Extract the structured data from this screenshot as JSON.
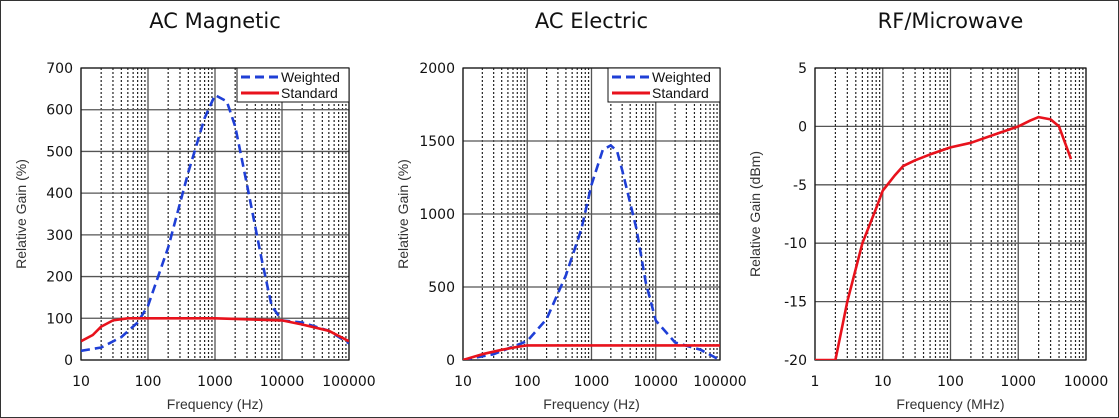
{
  "chart_data": [
    {
      "type": "line",
      "title": "AC Magnetic",
      "xlabel": "Frequency (Hz)",
      "ylabel": "Relative Gain (%)",
      "xscale": "log",
      "xlim": [
        10,
        100000
      ],
      "ylim": [
        0,
        700
      ],
      "xticks": [
        "10",
        "100",
        "1000",
        "10000",
        "100000"
      ],
      "yticks": [
        "0",
        "100",
        "200",
        "300",
        "400",
        "500",
        "600",
        "700"
      ],
      "grid": true,
      "legend_position": "top-right",
      "series": [
        {
          "name": "Weighted",
          "color": "#1f3fd6",
          "style": "dashed",
          "x": [
            10,
            20,
            40,
            70,
            100,
            200,
            400,
            700,
            1000,
            1500,
            2000,
            3000,
            5000,
            7000,
            10000,
            20000,
            50000,
            100000
          ],
          "y": [
            22,
            30,
            55,
            90,
            130,
            270,
            450,
            580,
            635,
            620,
            560,
            420,
            240,
            130,
            95,
            90,
            70,
            40
          ]
        },
        {
          "name": "Standard",
          "color": "#e8121c",
          "style": "solid",
          "x": [
            10,
            15,
            20,
            30,
            50,
            100,
            1000,
            10000,
            20000,
            50000,
            100000
          ],
          "y": [
            45,
            60,
            80,
            95,
            100,
            100,
            100,
            95,
            85,
            70,
            45
          ]
        }
      ]
    },
    {
      "type": "line",
      "title": "AC Electric",
      "xlabel": "Frequency (Hz)",
      "ylabel": "Relative Gain (%)",
      "xscale": "log",
      "xlim": [
        10,
        100000
      ],
      "ylim": [
        0,
        2000
      ],
      "xticks": [
        "10",
        "100",
        "1000",
        "10000",
        "100000"
      ],
      "yticks": [
        "0",
        "500",
        "1000",
        "1500",
        "2000"
      ],
      "grid": true,
      "legend_position": "top-right",
      "series": [
        {
          "name": "Weighted",
          "color": "#1f3fd6",
          "style": "dashed",
          "x": [
            10,
            30,
            100,
            200,
            400,
            700,
            1000,
            1500,
            2000,
            2500,
            3000,
            5000,
            7000,
            10000,
            20000,
            50000,
            100000
          ],
          "y": [
            0,
            40,
            130,
            280,
            580,
            900,
            1200,
            1440,
            1470,
            1430,
            1300,
            900,
            530,
            270,
            120,
            70,
            0
          ]
        },
        {
          "name": "Standard",
          "color": "#e8121c",
          "style": "solid",
          "x": [
            10,
            20,
            40,
            70,
            100,
            1000,
            10000,
            100000
          ],
          "y": [
            0,
            40,
            70,
            90,
            100,
            100,
            100,
            100
          ]
        }
      ]
    },
    {
      "type": "line",
      "title": "RF/Microwave",
      "xlabel": "Frequency (MHz)",
      "ylabel": "Relative Gain (dBm)",
      "xscale": "log",
      "xlim": [
        1,
        10000
      ],
      "ylim": [
        -20,
        5
      ],
      "xticks": [
        "1",
        "10",
        "100",
        "1000",
        "10000"
      ],
      "yticks": [
        "-20",
        "-15",
        "-10",
        "-5",
        "0",
        "5"
      ],
      "grid": true,
      "series": [
        {
          "name": "",
          "color": "#e8121c",
          "style": "solid",
          "x": [
            1,
            2,
            3,
            5,
            8,
            10,
            15,
            20,
            30,
            50,
            100,
            200,
            500,
            1000,
            1500,
            2000,
            3000,
            4000,
            6000
          ],
          "y": [
            -20,
            -20,
            -15,
            -10,
            -7,
            -5.5,
            -4.2,
            -3.4,
            -2.9,
            -2.4,
            -1.8,
            -1.4,
            -0.6,
            0,
            0.5,
            0.8,
            0.6,
            0,
            -2.8
          ]
        }
      ]
    }
  ]
}
